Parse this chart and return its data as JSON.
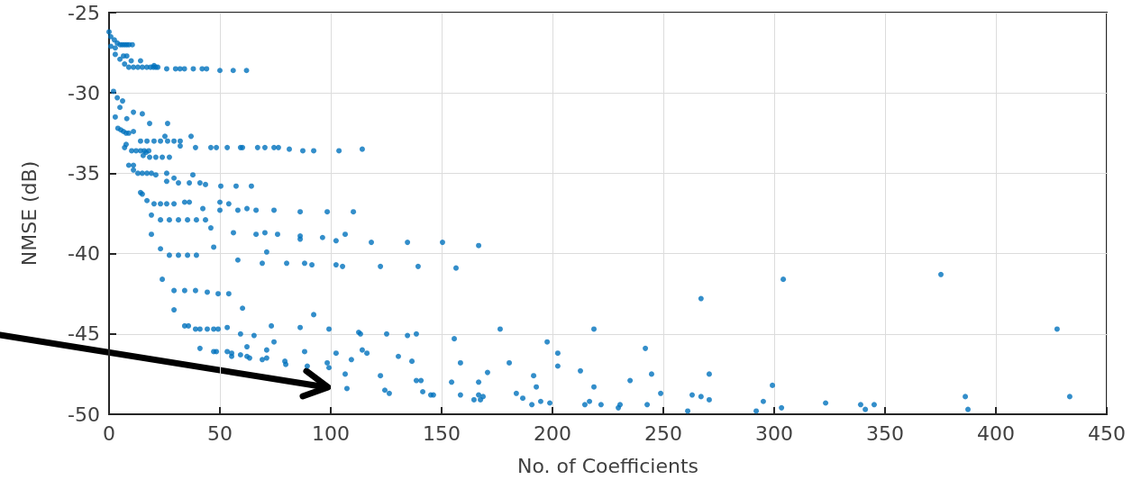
{
  "chart_data": {
    "type": "scatter",
    "xlabel": "No. of Coefficients",
    "ylabel": "NMSE (dB)",
    "xlim": [
      0,
      450
    ],
    "xticks": [
      0,
      50,
      100,
      150,
      200,
      250,
      300,
      350,
      400,
      450
    ],
    "ylim": [
      -50,
      -25
    ],
    "yticks": [
      -50,
      -45,
      -40,
      -35,
      -30,
      -25
    ],
    "grid": true,
    "marker": "circle",
    "series": [
      {
        "color": "#0072bd",
        "x": [
          0,
          0.8,
          2.4,
          3.7,
          5,
          6,
          7,
          8,
          9,
          10.5,
          0.8,
          2.8,
          2.8,
          4.9,
          6.5,
          8,
          7,
          10,
          14.2,
          20.3,
          8.9,
          11,
          13,
          15,
          17,
          18.7,
          20,
          21.1,
          22,
          26,
          30,
          32,
          34,
          38,
          42,
          44,
          50,
          56,
          62,
          2,
          3.7,
          6.1,
          4.9,
          2.8,
          8,
          11,
          15,
          18.3,
          26.4,
          4,
          5.3,
          6.5,
          7.7,
          8.9,
          11,
          25.2,
          37,
          14.2,
          17.1,
          20.3,
          23.2,
          26.4,
          29.3,
          32.1,
          32.1,
          39,
          45.9,
          48.4,
          53.3,
          59.3,
          60.2,
          67,
          70.3,
          74.4,
          76.4,
          81.3,
          87.4,
          92.3,
          103.7,
          114.2,
          7,
          7.7,
          10.2,
          12.2,
          14.2,
          15.9,
          17.9,
          15.4,
          16.7,
          18.3,
          21.1,
          24,
          27.2,
          8.9,
          11,
          11,
          13,
          15,
          17.1,
          19.1,
          21.1,
          26,
          29.3,
          37.8,
          26,
          31.3,
          36.2,
          41,
          43.5,
          50.4,
          57.3,
          64.2,
          14.2,
          15,
          17.1,
          20.3,
          23.2,
          26,
          29.3,
          34.1,
          36.2,
          42.3,
          50,
          50,
          54,
          58.1,
          62.2,
          66.3,
          74.4,
          86.2,
          98.4,
          110.2,
          19.1,
          23.2,
          27.2,
          31.3,
          35.4,
          39.4,
          43.5,
          45.9,
          19.1,
          56.1,
          66.3,
          70.3,
          76,
          86.2,
          86.2,
          96.3,
          102.4,
          106.5,
          118.3,
          23.2,
          27.2,
          31.3,
          35.4,
          39.4,
          47.2,
          71.1,
          58.1,
          69.1,
          80.1,
          88.2,
          91.5,
          102.4,
          105.3,
          24,
          29.3,
          34.1,
          39,
          44.3,
          49.2,
          54,
          29.3,
          60.2,
          92.3,
          34.1,
          35.8,
          39,
          41,
          44.3,
          47.2,
          49.2,
          53.3,
          59.3,
          65.4,
          73.2,
          86.2,
          99.2,
          112.6,
          113.4,
          41,
          47.2,
          48.4,
          53.3,
          55.3,
          55.3,
          59.3,
          62.2,
          62.2,
          63.4,
          69.1,
          71.1,
          71.1,
          74.4,
          79.3,
          79.7,
          88.2,
          89.4,
          98.4,
          99.2,
          102.4,
          106.5,
          107.3,
          109.3,
          114.2,
          116.3,
          134.6,
          150.4,
          166.7,
          122.4,
          139.4,
          156.5,
          267,
          125.2,
          134.6,
          138.6,
          176.4,
          155.7,
          218.7,
          130.5,
          136.6,
          158.5,
          180.5,
          197.6,
          202.4,
          202.4,
          212.6,
          241.9,
          244.7,
          270.7,
          122.4,
          170.7,
          191.5,
          192.7,
          218.7,
          235,
          124.4,
          126.4,
          138.6,
          140.7,
          141.5,
          145.1,
          146.3,
          154.5,
          158.5,
          166.7,
          166.7,
          164.6,
          167.5,
          168.7,
          183.7,
          186.6,
          190.7,
          194.7,
          198.8,
          214.6,
          216.7,
          221.9,
          229.7,
          230.5,
          242.7,
          248.8,
          261,
          263,
          267,
          270.7,
          304.1,
          375.2,
          427.6,
          299.2,
          295.1,
          291.9,
          303.3,
          323.2,
          339,
          341.1,
          345.1,
          386.2,
          387.4,
          433.3
        ],
        "values": [
          -26.2,
          -26.5,
          -26.7,
          -26.9,
          -27,
          -27,
          -27,
          -27,
          -27,
          -27,
          -27.1,
          -27.2,
          -27.6,
          -27.9,
          -27.7,
          -27.7,
          -28.2,
          -28,
          -28,
          -28.3,
          -28.4,
          -28.4,
          -28.4,
          -28.4,
          -28.4,
          -28.4,
          -28.4,
          -28.4,
          -28.4,
          -28.5,
          -28.5,
          -28.5,
          -28.5,
          -28.5,
          -28.5,
          -28.5,
          -28.6,
          -28.6,
          -28.6,
          -29.9,
          -30.3,
          -30.5,
          -30.9,
          -31.5,
          -31.6,
          -31.2,
          -31.3,
          -31.9,
          -31.9,
          -32.2,
          -32.3,
          -32.4,
          -32.5,
          -32.5,
          -32.4,
          -32.7,
          -32.7,
          -33,
          -33,
          -33,
          -33,
          -33,
          -33,
          -33,
          -33.3,
          -33.4,
          -33.4,
          -33.4,
          -33.4,
          -33.4,
          -33.4,
          -33.4,
          -33.4,
          -33.4,
          -33.4,
          -33.5,
          -33.6,
          -33.6,
          -33.6,
          -33.5,
          -33.4,
          -33.2,
          -33.6,
          -33.6,
          -33.6,
          -33.6,
          -33.6,
          -33.9,
          -33.7,
          -34,
          -34,
          -34,
          -34,
          -34.5,
          -34.5,
          -34.8,
          -35,
          -35,
          -35,
          -35,
          -35.1,
          -35,
          -35.3,
          -35.1,
          -35.5,
          -35.6,
          -35.6,
          -35.6,
          -35.7,
          -35.8,
          -35.8,
          -35.8,
          -36.2,
          -36.3,
          -36.7,
          -36.9,
          -36.9,
          -36.9,
          -36.9,
          -36.8,
          -36.8,
          -37.2,
          -36.8,
          -37.3,
          -36.9,
          -37.3,
          -37.2,
          -37.3,
          -37.3,
          -37.4,
          -37.4,
          -37.4,
          -37.6,
          -37.9,
          -37.9,
          -37.9,
          -37.9,
          -37.9,
          -37.9,
          -38.4,
          -38.8,
          -38.7,
          -38.8,
          -38.7,
          -38.8,
          -38.9,
          -39.1,
          -39,
          -39.2,
          -38.8,
          -39.3,
          -39.7,
          -40.1,
          -40.1,
          -40.1,
          -40.1,
          -39.6,
          -39.9,
          -40.4,
          -40.6,
          -40.6,
          -40.6,
          -40.7,
          -40.7,
          -40.8,
          -41.6,
          -42.3,
          -42.3,
          -42.3,
          -42.4,
          -42.5,
          -42.5,
          -43.5,
          -43.4,
          -43.8,
          -44.5,
          -44.5,
          -44.7,
          -44.7,
          -44.7,
          -44.7,
          -44.7,
          -44.6,
          -45,
          -45.1,
          -44.5,
          -44.6,
          -44.7,
          -44.9,
          -45,
          -45.9,
          -46.1,
          -46.1,
          -46.1,
          -46.2,
          -46.4,
          -46.3,
          -45.8,
          -46.4,
          -46.5,
          -46.6,
          -46.5,
          -46,
          -45.5,
          -46.7,
          -46.9,
          -46.1,
          -47,
          -46.8,
          -47.1,
          -46.2,
          -47.5,
          -48.4,
          -46.6,
          -46,
          -46.2,
          -39.3,
          -39.3,
          -39.5,
          -40.8,
          -40.8,
          -40.9,
          -42.8,
          -45,
          -45.1,
          -45,
          -44.7,
          -45.3,
          -44.7,
          -46.4,
          -46.7,
          -46.8,
          -46.8,
          -45.5,
          -46.2,
          -47,
          -47.3,
          -45.9,
          -47.5,
          -47.5,
          -47.6,
          -47.4,
          -47.6,
          -48.3,
          -48.3,
          -47.9,
          -48.5,
          -48.7,
          -47.9,
          -47.9,
          -48.6,
          -48.8,
          -48.8,
          -48,
          -48.8,
          -48,
          -48.8,
          -49.1,
          -49.1,
          -48.9,
          -48.7,
          -49,
          -49.4,
          -49.2,
          -49.3,
          -49.4,
          -49.2,
          -49.4,
          -49.6,
          -49.4,
          -49.4,
          -48.7,
          -49.8,
          -48.8,
          -48.9,
          -49.1,
          -41.6,
          -41.3,
          -44.7,
          -48.2,
          -49.2,
          -49.8,
          -49.6,
          -49.3,
          -49.4,
          -49.7,
          -49.4,
          -48.9,
          -49.7,
          -48.9
        ]
      }
    ]
  }
}
